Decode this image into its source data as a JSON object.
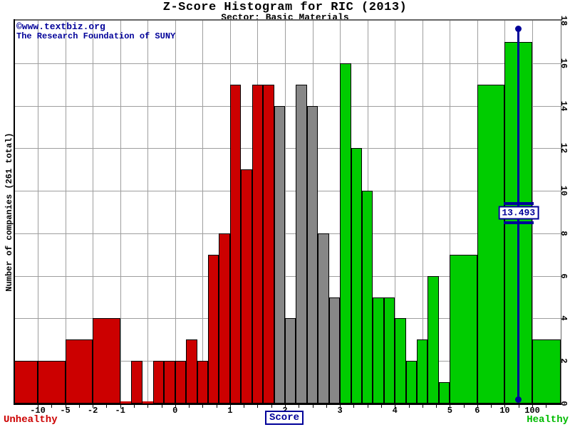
{
  "page": {
    "title": "Z-Score Histogram for RIC (2013)",
    "subtitle": "Sector: Basic Materials",
    "attribution_line1": "©www.textbiz.org",
    "attribution_line2": "The Research Foundation of SUNY"
  },
  "chart_data": {
    "type": "bar",
    "title": "Z-Score Histogram for RIC (2013)",
    "subtitle": "Sector: Basic Materials",
    "xlabel": "Score",
    "ylabel": "Number of companies (261 total)",
    "total_companies": 261,
    "zone_labels": {
      "left": "Unhealthy",
      "right": "Healthy"
    },
    "zone_thresholds": {
      "distress_max": 1.8,
      "safe_min": 3
    },
    "y_axis": {
      "min": 0,
      "max": 18,
      "tick_step": 2,
      "side": "right"
    },
    "x_axis": {
      "scale": "piecewise-linear-uniform-gridlines",
      "tick_values": [
        -10,
        -5,
        -2,
        -1,
        0,
        1,
        2,
        3,
        4,
        5,
        6,
        10,
        100
      ],
      "gridline_values": [
        -10,
        -5,
        -2,
        -1,
        -0.5,
        0,
        0.5,
        1,
        1.5,
        2,
        2.5,
        3,
        3.5,
        4,
        4.5,
        5,
        6,
        10,
        100
      ]
    },
    "marker": {
      "value": 13.493,
      "label": "13.493"
    },
    "bins": [
      {
        "from": null,
        "to": -10,
        "count": 2
      },
      {
        "from": -10,
        "to": -5,
        "count": 2
      },
      {
        "from": -5,
        "to": -2,
        "count": 3
      },
      {
        "from": -2,
        "to": -1,
        "count": 4
      },
      {
        "from": -1,
        "to": -0.8,
        "count": 0
      },
      {
        "from": -0.8,
        "to": -0.6,
        "count": 2
      },
      {
        "from": -0.6,
        "to": -0.4,
        "count": 0
      },
      {
        "from": -0.4,
        "to": -0.2,
        "count": 2
      },
      {
        "from": -0.2,
        "to": 0,
        "count": 2
      },
      {
        "from": 0,
        "to": 0.2,
        "count": 2
      },
      {
        "from": 0.2,
        "to": 0.4,
        "count": 3
      },
      {
        "from": 0.4,
        "to": 0.6,
        "count": 2
      },
      {
        "from": 0.6,
        "to": 0.8,
        "count": 7
      },
      {
        "from": 0.8,
        "to": 1,
        "count": 8
      },
      {
        "from": 1,
        "to": 1.2,
        "count": 15
      },
      {
        "from": 1.2,
        "to": 1.4,
        "count": 11
      },
      {
        "from": 1.4,
        "to": 1.6,
        "count": 15
      },
      {
        "from": 1.6,
        "to": 1.8,
        "count": 15
      },
      {
        "from": 1.8,
        "to": 2,
        "count": 14
      },
      {
        "from": 2,
        "to": 2.2,
        "count": 4
      },
      {
        "from": 2.2,
        "to": 2.4,
        "count": 15
      },
      {
        "from": 2.4,
        "to": 2.6,
        "count": 14
      },
      {
        "from": 2.6,
        "to": 2.8,
        "count": 8
      },
      {
        "from": 2.8,
        "to": 3,
        "count": 5
      },
      {
        "from": 3,
        "to": 3.2,
        "count": 16
      },
      {
        "from": 3.2,
        "to": 3.4,
        "count": 12
      },
      {
        "from": 3.4,
        "to": 3.6,
        "count": 10
      },
      {
        "from": 3.6,
        "to": 3.8,
        "count": 5
      },
      {
        "from": 3.8,
        "to": 4,
        "count": 5
      },
      {
        "from": 4,
        "to": 4.2,
        "count": 4
      },
      {
        "from": 4.2,
        "to": 4.4,
        "count": 2
      },
      {
        "from": 4.4,
        "to": 4.6,
        "count": 3
      },
      {
        "from": 4.6,
        "to": 4.8,
        "count": 6
      },
      {
        "from": 4.8,
        "to": 5,
        "count": 1
      },
      {
        "from": 5,
        "to": 6,
        "count": 7
      },
      {
        "from": 6,
        "to": 10,
        "count": 15
      },
      {
        "from": 10,
        "to": 100,
        "count": 17
      },
      {
        "from": 100,
        "to": null,
        "count": 3
      }
    ],
    "colors": {
      "unhealthy": "#cc0000",
      "neutral": "#878787",
      "healthy": "#00cc00",
      "marker": "#000099",
      "grid": "#9e9e9e"
    }
  }
}
